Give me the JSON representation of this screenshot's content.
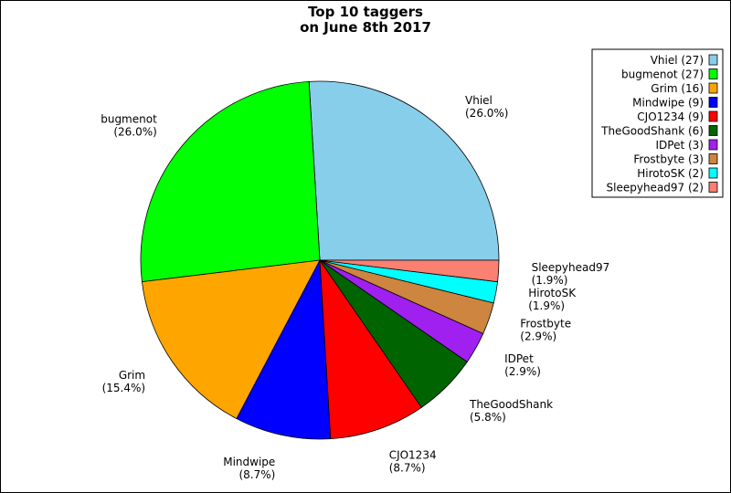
{
  "chart_data": {
    "type": "pie",
    "title_lines": [
      "Top 10 taggers",
      "on June 8th 2017"
    ],
    "legend_placement": "top-right",
    "slices": [
      {
        "name": "Vhiel",
        "value": 27,
        "percent_label": "(26.0%)",
        "legend_label": "Vhiel (27)",
        "color": "#87ceeb"
      },
      {
        "name": "bugmenot",
        "value": 27,
        "percent_label": "(26.0%)",
        "legend_label": "bugmenot (27)",
        "color": "#00ff00"
      },
      {
        "name": "Grim",
        "value": 16,
        "percent_label": "(15.4%)",
        "legend_label": "Grim (16)",
        "color": "#ffa500"
      },
      {
        "name": "Mindwipe",
        "value": 9,
        "percent_label": "(8.7%)",
        "legend_label": "Mindwipe (9)",
        "color": "#0000ff"
      },
      {
        "name": "CJO1234",
        "value": 9,
        "percent_label": "(8.7%)",
        "legend_label": "CJO1234 (9)",
        "color": "#ff0000"
      },
      {
        "name": "TheGoodShank",
        "value": 6,
        "percent_label": "(5.8%)",
        "legend_label": "TheGoodShank (6)",
        "color": "#006400"
      },
      {
        "name": "IDPet",
        "value": 3,
        "percent_label": "(2.9%)",
        "legend_label": "IDPet (3)",
        "color": "#a020f0"
      },
      {
        "name": "Frostbyte",
        "value": 3,
        "percent_label": "(2.9%)",
        "legend_label": "Frostbyte (3)",
        "color": "#cd853f"
      },
      {
        "name": "HirotoSK",
        "value": 2,
        "percent_label": "(1.9%)",
        "legend_label": "HirotoSK (2)",
        "color": "#00ffff"
      },
      {
        "name": "Sleepyhead97",
        "value": 2,
        "percent_label": "(1.9%)",
        "legend_label": "Sleepyhead97 (2)",
        "color": "#fa8072"
      }
    ]
  }
}
